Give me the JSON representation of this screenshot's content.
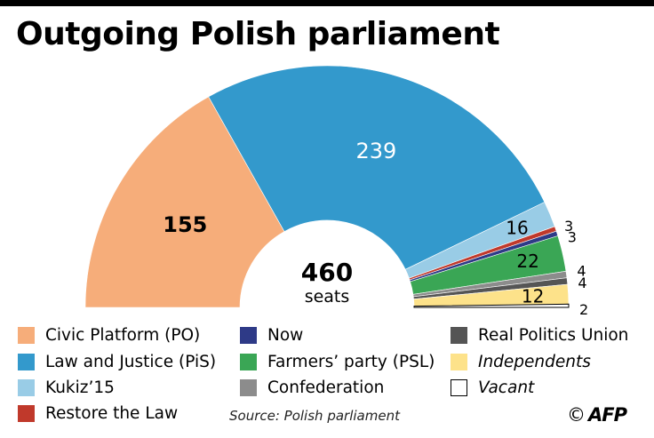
{
  "title": "Outgoing Polish parliament",
  "center_label": {
    "value": "460",
    "unit": "seats"
  },
  "chart_data": {
    "type": "pie",
    "variant": "semicircle-hemicycle",
    "total": 460,
    "series": [
      {
        "name": "Civic Platform (PO)",
        "value": 155,
        "color": "#f6ad7a",
        "label": "155"
      },
      {
        "name": "Law and Justice (PiS)",
        "value": 239,
        "color": "#3399cc",
        "label": "239"
      },
      {
        "name": "Kukiz’15",
        "value": 16,
        "color": "#99cce6",
        "label": "16"
      },
      {
        "name": "Restore the Law",
        "value": 3,
        "color": "#c0392b",
        "label": "3"
      },
      {
        "name": "Now",
        "value": 3,
        "color": "#2e3a87",
        "label": "3"
      },
      {
        "name": "Farmers’ party (PSL)",
        "value": 22,
        "color": "#3aa655",
        "label": "22"
      },
      {
        "name": "Confederation",
        "value": 4,
        "color": "#8c8c8c",
        "label": "4"
      },
      {
        "name": "Real Politics Union",
        "value": 4,
        "color": "#555555",
        "label": "4"
      },
      {
        "name": "Independents",
        "value": 12,
        "color": "#fde28a",
        "label": "12"
      },
      {
        "name": "Vacant",
        "value": 2,
        "color": "#ffffff",
        "label": "2"
      }
    ]
  },
  "legend": [
    {
      "label": "Civic Platform (PO)",
      "color": "#f6ad7a",
      "italic": false
    },
    {
      "label": "Now",
      "color": "#2e3a87",
      "italic": false
    },
    {
      "label": "Real Politics Union",
      "color": "#555555",
      "italic": false
    },
    {
      "label": "Law and Justice (PiS)",
      "color": "#3399cc",
      "italic": false
    },
    {
      "label": "Farmers’ party (PSL)",
      "color": "#3aa655",
      "italic": false
    },
    {
      "label": "Independents",
      "color": "#fde28a",
      "italic": true
    },
    {
      "label": "Kukiz’15",
      "color": "#99cce6",
      "italic": false
    },
    {
      "label": "Confederation",
      "color": "#8c8c8c",
      "italic": false
    },
    {
      "label": "Vacant",
      "color": "#ffffff",
      "italic": true
    },
    {
      "label": "Restore the Law",
      "color": "#c0392b",
      "italic": false
    }
  ],
  "source": "Source: Polish parliament",
  "credit": {
    "copyright": "©",
    "logo": "AFP"
  }
}
